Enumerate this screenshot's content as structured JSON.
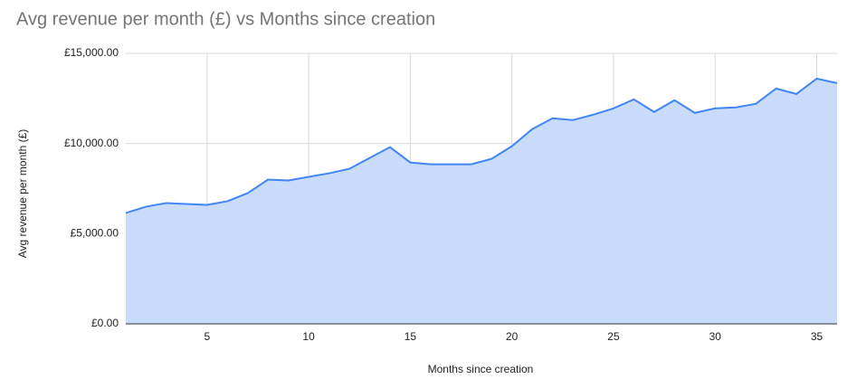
{
  "chart_data": {
    "type": "area",
    "title": "Avg revenue per month (£) vs Months since creation",
    "x_label": "Months since creation",
    "y_label": "Avg revenue per month (£)",
    "x": [
      1,
      2,
      3,
      4,
      5,
      6,
      7,
      8,
      9,
      10,
      11,
      12,
      13,
      14,
      15,
      16,
      17,
      18,
      19,
      20,
      21,
      22,
      23,
      24,
      25,
      26,
      27,
      28,
      29,
      30,
      31,
      32,
      33,
      34,
      35,
      36
    ],
    "series": [
      {
        "name": "Avg revenue per month (£)",
        "color": "#4285f4",
        "values": [
          6150,
          6500,
          6700,
          6650,
          6600,
          6800,
          7250,
          8000,
          7950,
          8150,
          8350,
          8600,
          9200,
          9800,
          8950,
          8850,
          8850,
          8850,
          9150,
          9850,
          10800,
          11400,
          11300,
          11600,
          11950,
          12450,
          11750,
          12400,
          11700,
          11950,
          12000,
          12200,
          13050,
          12750,
          13600,
          13350
        ]
      }
    ],
    "fill_color": "#c6dafc",
    "xlim": [
      1,
      36
    ],
    "xticks": [
      5,
      10,
      15,
      20,
      25,
      30,
      35
    ],
    "ylim": [
      0,
      15000
    ],
    "yticks": [
      {
        "value": 0,
        "label": "£0.00"
      },
      {
        "value": 5000,
        "label": "£5,000.00"
      },
      {
        "value": 10000,
        "label": "£10,000.00"
      },
      {
        "value": 15000,
        "label": "£15,000.00"
      }
    ],
    "grid": true
  }
}
